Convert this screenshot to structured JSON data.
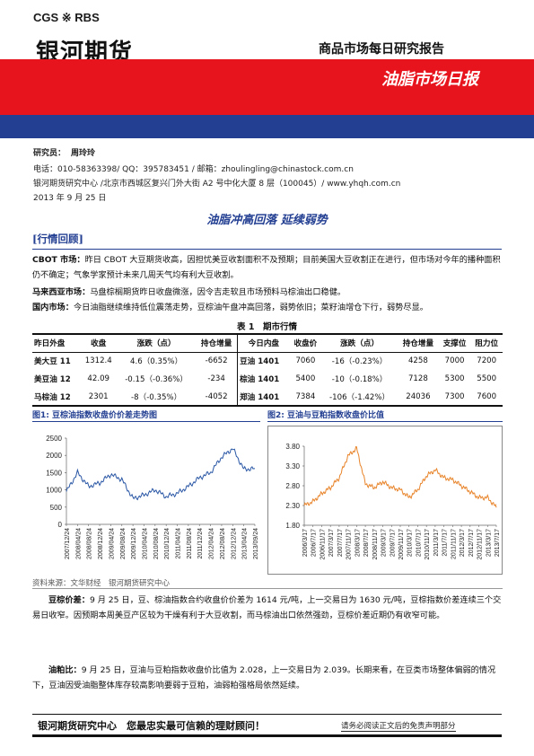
{
  "header": {
    "logo_latin": "CGS ※ RBS",
    "logo_cn": "银河期货",
    "report_type": "商品市场每日研究报告",
    "report_title": "油脂市场日报"
  },
  "author": {
    "researcher_label": "研究员：",
    "researcher_name": "周玲玲",
    "contact": "电话：010-58363398/ QQ：395783451 / 邮箱：zhoulingling@chinastock.com.cn",
    "address": "银河期货研究中心 /北京市西城区复兴门外大街 A2 号中化大厦 8 层（100045）/ www.yhqh.com.cn",
    "date": "2013 年 9 月 25 日"
  },
  "headline": "油脂冲高回落 延续弱势",
  "section_market": "[行情回顾]",
  "review": [
    {
      "label": "CBOT 市场：",
      "text": "昨日 CBOT 大豆期货收高，因担忧美豆收割面积不及预期；目前美国大豆收割正在进行，但市场对今年的播种面积仍不确定；气象学家预计未来几周天气均有利大豆收割。"
    },
    {
      "label": "马来西亚市场：",
      "text": "马盘棕榈期货昨日收盘微涨，因令吉走软且市场预料马棕油出口稳健。"
    },
    {
      "label": "国内市场：",
      "text": "今日油脂继续维持低位震荡走势，豆棕油午盘冲高回落，弱势依旧；菜籽油增仓下行，弱势尽显。"
    }
  ],
  "table": {
    "caption": "表 1　期市行情",
    "headers": [
      "昨日外盘",
      "收盘",
      "涨跌（点）",
      "持仓增量",
      "今日内盘",
      "收盘价",
      "涨跌（点）",
      "持仓增量",
      "支撑位",
      "阻力位"
    ],
    "rows": [
      [
        "美大豆 11",
        "1312.4",
        "4.6（0.35%）",
        "-6652",
        "豆油 1401",
        "7060",
        "-16（-0.23%）",
        "4258",
        "7000",
        "7200"
      ],
      [
        "美豆油 12",
        "42.09",
        "-0.15（-0.36%）",
        "-234",
        "棕油 1401",
        "5400",
        "-10（-0.18%）",
        "7128",
        "5300",
        "5500"
      ],
      [
        "马棕油 12",
        "2301",
        "-8（-0.35%）",
        "-4052",
        "郑油 1401",
        "7384",
        "-106（-1.42%）",
        "24036",
        "7300",
        "7600"
      ]
    ]
  },
  "figure1": {
    "title": "图1: 豆棕油指数收盘价价差走势图",
    "chart_data": {
      "type": "line",
      "title": "",
      "xlabel": "",
      "ylabel": "",
      "ylim": [
        0,
        2500
      ],
      "yticks": [
        "0",
        "500",
        "1000",
        "1500",
        "2000",
        "2500"
      ],
      "x": [
        "2007/12/24",
        "2008/04/24",
        "2008/08/24",
        "2008/12/24",
        "2009/04/24",
        "2009/08/24",
        "2009/12/24",
        "2010/04/24",
        "2010/08/24",
        "2010/12/24",
        "2011/04/24",
        "2011/08/24",
        "2011/12/24",
        "2012/04/24",
        "2012/08/24",
        "2012/12/24",
        "2013/04/24",
        "2013/09/24"
      ],
      "series": [
        {
          "name": "",
          "color": "#2a57a5",
          "values": [
            950,
            1500,
            1100,
            1200,
            1450,
            1300,
            750,
            850,
            1000,
            800,
            900,
            1100,
            1350,
            1500,
            1950,
            2200,
            1600,
            1614
          ]
        }
      ]
    }
  },
  "figure2": {
    "title": "图2: 豆油与豆粕指数收盘价比值",
    "chart_data": {
      "type": "line",
      "title": "",
      "xlabel": "",
      "ylabel": "",
      "ylim": [
        1.8,
        3.8
      ],
      "yticks": [
        "1.80",
        "2.30",
        "2.80",
        "3.30",
        "3.80"
      ],
      "x": [
        "2006/3/17",
        "2006/7/17",
        "2006/11/17",
        "2007/3/17",
        "2007/7/17",
        "2007/11/17",
        "2008/3/17",
        "2008/7/17",
        "2008/11/17",
        "2009/3/17",
        "2009/7/17",
        "2009/11/17",
        "2010/3/17",
        "2010/7/17",
        "2010/11/17",
        "2011/3/17",
        "2011/7/17",
        "2011/11/17",
        "2012/3/17",
        "2012/7/17",
        "2012/11/17",
        "2013/3/17",
        "2013/7/17"
      ],
      "series": [
        {
          "name": "",
          "color": "#e8842a",
          "values": [
            2.3,
            2.4,
            2.6,
            2.75,
            3.0,
            3.55,
            3.75,
            2.85,
            2.75,
            2.9,
            2.75,
            2.7,
            2.5,
            2.7,
            3.05,
            3.2,
            3.0,
            2.95,
            2.8,
            2.65,
            2.5,
            2.5,
            2.25
          ]
        }
      ]
    }
  },
  "source": "资料来源：文华财经　银河期货研究中心",
  "spread": {
    "label": "豆棕价差：",
    "text": "9 月 25 日，豆、棕油指数合约收盘价价差为 1614 元/吨，上一交易日为 1630 元/吨，豆棕指数价差连续三个交易日收窄。因预期本周美豆产区较为干燥有利于大豆收割，而马棕油出口依然强劲，豆棕价差近期仍有收窄可能。"
  },
  "ratio": {
    "label": "油粕比：",
    "text": "9 月 25 日，豆油与豆粕指数收盘价比值为 2.028，上一交易日为 2.039。长期来看，在豆类市场整体偏弱的情况下，豆油因受油脂整体库存较高影响要弱于豆粕，油弱粕强格局依然延续。"
  },
  "footer": {
    "slogan": "银河期货研究中心　您最忠实最可信赖的理财顾问！",
    "disclaimer": "请务必阅读正文后的免责声明部分"
  }
}
